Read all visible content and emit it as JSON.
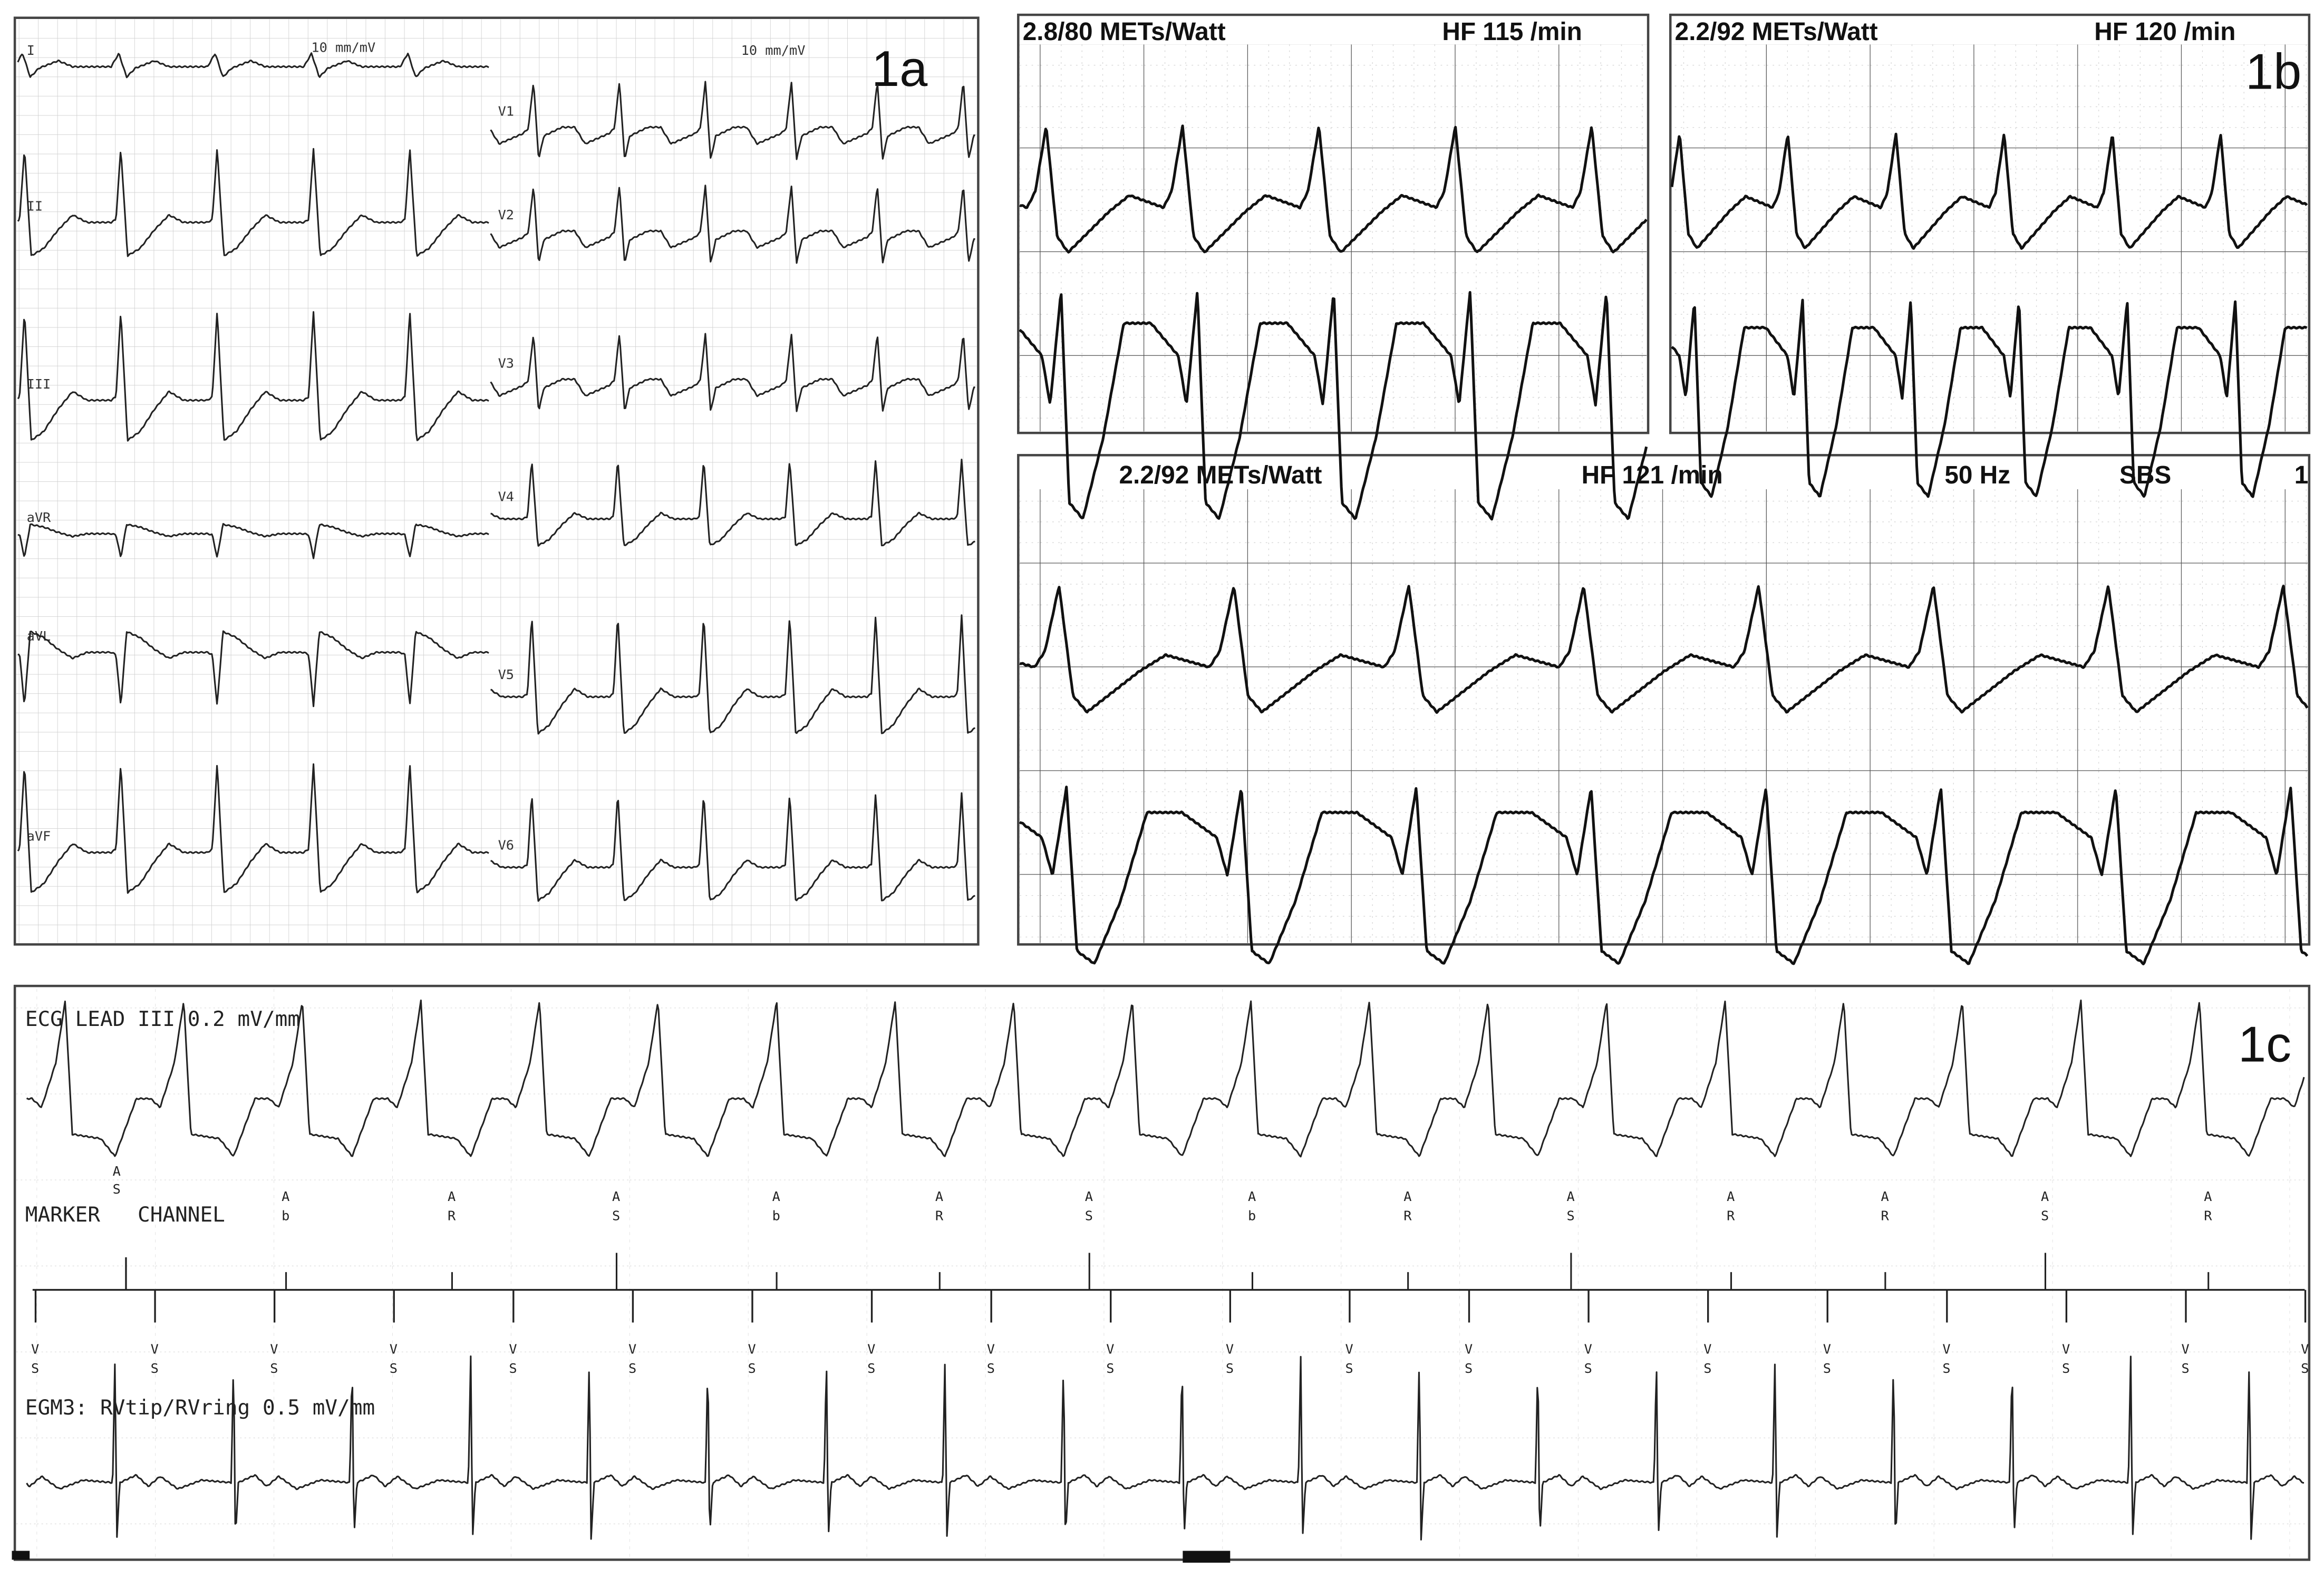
{
  "panel_1a": {
    "panel_label": "1a",
    "gain_left": "10 mm/mV",
    "gain_right": "10 mm/mV",
    "leads_left": [
      "I",
      "II",
      "III",
      "aVR",
      "aVL",
      "aVF"
    ],
    "leads_right": [
      "V1",
      "V2",
      "V3",
      "V4",
      "V5",
      "V6"
    ]
  },
  "panel_1b": {
    "panel_label": "1b",
    "strip_1": {
      "load": "2.8/80 METs/Watt",
      "heart_rate": "HF  115 /min"
    },
    "strip_2": {
      "load": "2.2/92 METs/Watt",
      "heart_rate": "HF  120 /min"
    },
    "strip_3": {
      "load": "2.2/92 METs/Watt",
      "heart_rate": "HF  121 /min",
      "filter": "50 Hz",
      "mode": "SBS",
      "edge": "1"
    }
  },
  "panel_1c": {
    "panel_label": "1c",
    "ecg_label": "ECG LEAD III 0.2 mV/mm",
    "marker_label": "MARKER   CHANNEL",
    "first_marker": "AS",
    "atrial_markers": [
      "Ab",
      "AR",
      "AS",
      "Ab",
      "AR",
      "AS",
      "Ab",
      "AR",
      "AS",
      "AR",
      "AR",
      "AS",
      "AR"
    ],
    "ventricular_marker": "VS",
    "egm_label": "EGM3: RVtip/RVring 0.5 mV/mm"
  },
  "colors": {
    "trace": "#222222",
    "grid": "#c8c8c8",
    "frame": "#444444"
  }
}
